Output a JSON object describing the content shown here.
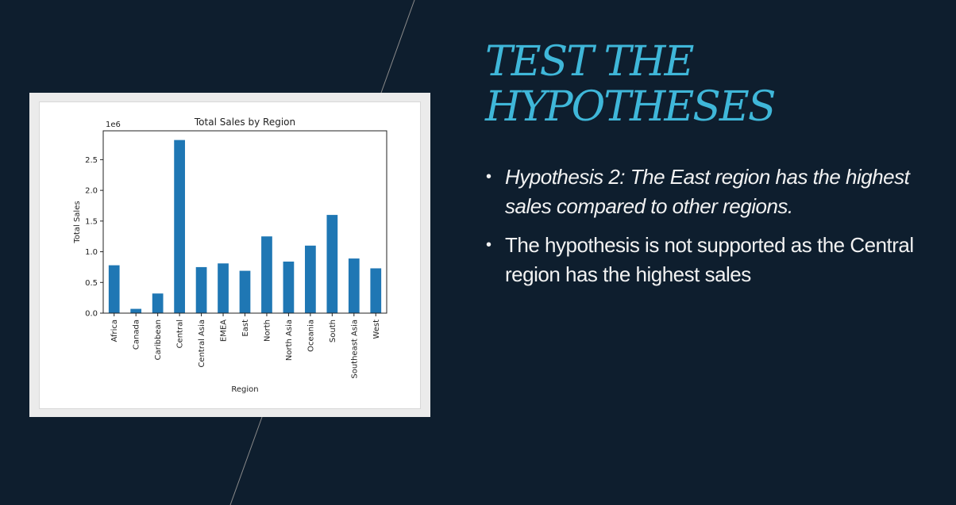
{
  "slide": {
    "title_lines": [
      "TEST THE",
      "HYPOTHESES"
    ],
    "bullets": [
      {
        "text": "Hypothesis 2: The East region has the highest sales compared to other regions.",
        "italic": true
      },
      {
        "text": "The hypothesis is not supported as the Central region has the highest sales",
        "italic": false
      }
    ],
    "bullet_glyph": "•"
  },
  "colors": {
    "background": "#0e1e2e",
    "title": "#3fb7d9",
    "bar": "#1f77b4",
    "line": "#8a8a8a"
  },
  "chart_data": {
    "type": "bar",
    "title": "Total Sales by Region",
    "xlabel": "Region",
    "ylabel": "Total Sales",
    "offset_label": "1e6",
    "categories": [
      "Africa",
      "Canada",
      "Caribbean",
      "Central",
      "Central Asia",
      "EMEA",
      "East",
      "North",
      "North Asia",
      "Oceania",
      "South",
      "Southeast Asia",
      "West"
    ],
    "values": [
      0.78,
      0.07,
      0.32,
      2.82,
      0.75,
      0.81,
      0.69,
      1.25,
      0.84,
      1.1,
      1.6,
      0.89,
      0.73
    ],
    "yticks": [
      "0.0",
      "0.5",
      "1.0",
      "1.5",
      "2.0",
      "2.5"
    ],
    "ylim": [
      0,
      2.97
    ],
    "grid": false
  }
}
